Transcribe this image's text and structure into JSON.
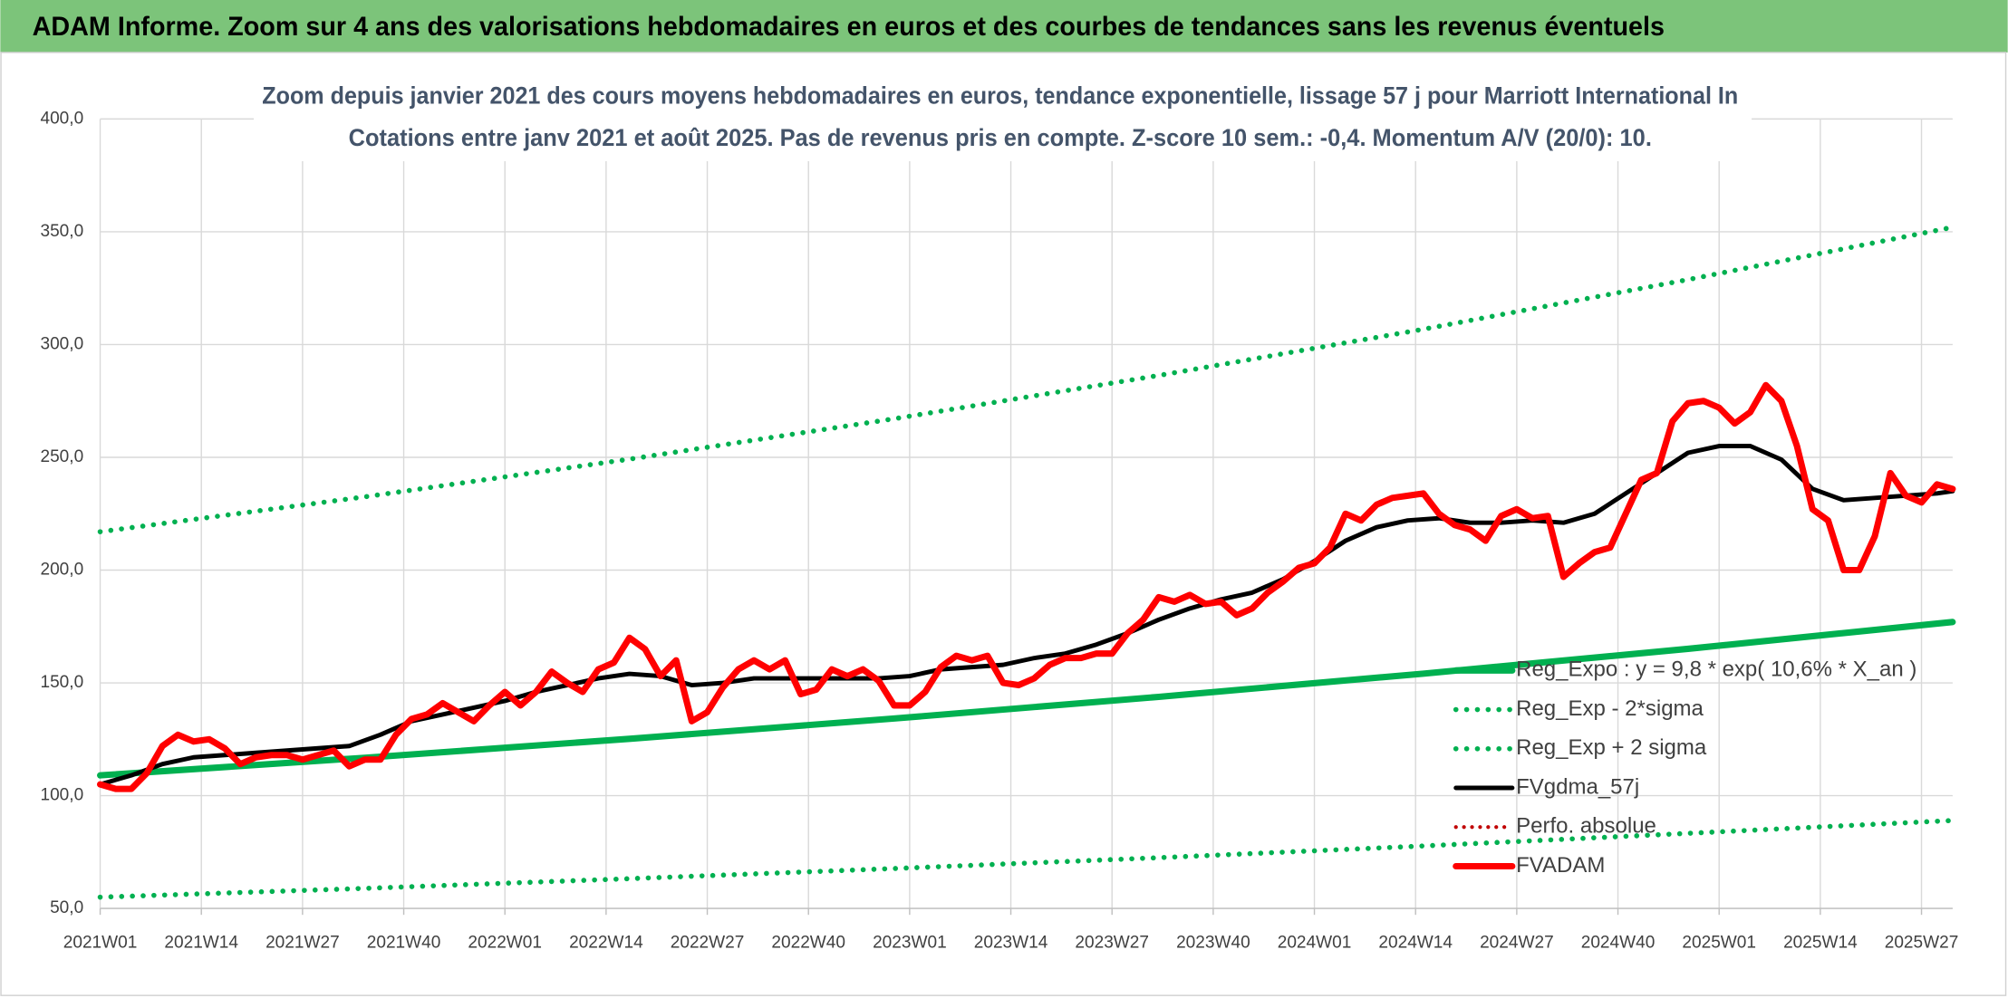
{
  "header": {
    "title": "ADAM Informe. Zoom sur 4 ans des valorisations hebdomadaires en euros et des courbes de tendances sans les revenus éventuels"
  },
  "chart_data": {
    "type": "line",
    "title": "Zoom depuis janvier 2021 des cours moyens hebdomadaires en euros, tendance exponentielle, lissage 57 j pour Marriott International In",
    "subtitle": "Cotations entre janv 2021 et août 2025. Pas de revenus pris en compte. Z-score 10 sem.: -0,4. Momentum A/V (20/0): 10.",
    "xlim": [
      0,
      238
    ],
    "xticks": [
      {
        "value": 0,
        "label": "2021W01"
      },
      {
        "value": 13,
        "label": "2021W14"
      },
      {
        "value": 26,
        "label": "2021W27"
      },
      {
        "value": 39,
        "label": "2021W40"
      },
      {
        "value": 52,
        "label": "2022W01"
      },
      {
        "value": 65,
        "label": "2022W14"
      },
      {
        "value": 78,
        "label": "2022W27"
      },
      {
        "value": 91,
        "label": "2022W40"
      },
      {
        "value": 104,
        "label": "2023W01"
      },
      {
        "value": 117,
        "label": "2023W14"
      },
      {
        "value": 130,
        "label": "2023W27"
      },
      {
        "value": 143,
        "label": "2023W40"
      },
      {
        "value": 156,
        "label": "2024W01"
      },
      {
        "value": 169,
        "label": "2024W14"
      },
      {
        "value": 182,
        "label": "2024W27"
      },
      {
        "value": 195,
        "label": "2024W40"
      },
      {
        "value": 208,
        "label": "2025W01"
      },
      {
        "value": 221,
        "label": "2025W14"
      },
      {
        "value": 234,
        "label": "2025W27"
      }
    ],
    "ylim": [
      50,
      400
    ],
    "yticks": [
      {
        "value": 50,
        "label": "50,0"
      },
      {
        "value": 100,
        "label": "100,0"
      },
      {
        "value": 150,
        "label": "150,0"
      },
      {
        "value": 200,
        "label": "200,0"
      },
      {
        "value": 250,
        "label": "250,0"
      },
      {
        "value": 300,
        "label": "300,0"
      },
      {
        "value": 350,
        "label": "350,0"
      },
      {
        "value": 400,
        "label": "400,0"
      }
    ],
    "grid": true,
    "legend": "lower-right",
    "series": [
      {
        "name": "Reg_Expo : y = 9,8 * exp( 10,6% *  X_an )",
        "color": "#00b050",
        "style": "solid",
        "width": 5,
        "x": [
          0,
          34,
          68,
          102,
          136,
          170,
          204,
          238
        ],
        "values": [
          109,
          116.8,
          125.2,
          134.2,
          143.8,
          154.1,
          165.1,
          177
        ]
      },
      {
        "name": "Reg_Exp - 2*sigma",
        "color": "#00b050",
        "style": "dotted",
        "width": 4,
        "x": [
          0,
          34,
          68,
          102,
          136,
          170,
          204,
          238
        ],
        "values": [
          55,
          58.9,
          63.2,
          67.7,
          72.5,
          77.7,
          83.3,
          89
        ]
      },
      {
        "name": "Reg_Exp + 2 sigma",
        "color": "#00b050",
        "style": "dotted",
        "width": 4,
        "x": [
          0,
          34,
          68,
          102,
          136,
          170,
          204,
          238
        ],
        "values": [
          217,
          232.5,
          249.2,
          267.1,
          286.3,
          306.8,
          328.8,
          352
        ]
      },
      {
        "name": "FVgdma_57j",
        "color": "#000000",
        "style": "solid",
        "width": 3.5,
        "x": [
          0,
          4,
          8,
          12,
          16,
          20,
          24,
          28,
          32,
          36,
          40,
          44,
          48,
          52,
          56,
          60,
          64,
          68,
          72,
          76,
          80,
          84,
          88,
          92,
          96,
          100,
          104,
          108,
          112,
          116,
          120,
          124,
          128,
          132,
          136,
          140,
          144,
          148,
          152,
          156,
          160,
          164,
          168,
          172,
          176,
          180,
          184,
          188,
          192,
          196,
          200,
          204,
          208,
          212,
          216,
          220,
          224,
          228,
          232,
          236,
          238
        ],
        "values": [
          105,
          109,
          114,
          117,
          118,
          119,
          120,
          121,
          122,
          127,
          133,
          136,
          139,
          142,
          146,
          149,
          152,
          154,
          153,
          149,
          150,
          152,
          152,
          152,
          152,
          152,
          153,
          156,
          157,
          158,
          161,
          163,
          167,
          172,
          178,
          183,
          187,
          190,
          196,
          204,
          213,
          219,
          222,
          223,
          221,
          221,
          222,
          221,
          225,
          234,
          243,
          252,
          255,
          255,
          249,
          236,
          231,
          232,
          233,
          234,
          235
        ]
      },
      {
        "name": "Perfo. absolue",
        "color": "#c00000",
        "style": "dotted",
        "width": 3
      },
      {
        "name": "FVADAM",
        "color": "#ff0000",
        "style": "solid",
        "width": 5,
        "x": [
          0,
          2,
          4,
          6,
          8,
          10,
          12,
          14,
          16,
          18,
          20,
          22,
          24,
          26,
          28,
          30,
          32,
          34,
          36,
          38,
          40,
          42,
          44,
          46,
          48,
          50,
          52,
          54,
          56,
          58,
          60,
          62,
          64,
          66,
          68,
          70,
          72,
          74,
          76,
          78,
          80,
          82,
          84,
          86,
          88,
          90,
          92,
          94,
          96,
          98,
          100,
          102,
          104,
          106,
          108,
          110,
          112,
          114,
          116,
          118,
          120,
          122,
          124,
          126,
          128,
          130,
          132,
          134,
          136,
          138,
          140,
          142,
          144,
          146,
          148,
          150,
          152,
          154,
          156,
          158,
          160,
          162,
          164,
          166,
          168,
          170,
          172,
          174,
          176,
          178,
          180,
          182,
          184,
          186,
          188,
          190,
          192,
          194,
          196,
          198,
          200,
          202,
          204,
          206,
          208,
          210,
          212,
          214,
          216,
          218,
          220,
          222,
          224,
          226,
          228,
          230,
          232,
          234,
          236,
          238
        ],
        "values": [
          105,
          103,
          103,
          110,
          122,
          127,
          124,
          125,
          121,
          114,
          117,
          118,
          118,
          116,
          118,
          120,
          113,
          116,
          116,
          127,
          134,
          136,
          141,
          137,
          133,
          140,
          146,
          140,
          146,
          155,
          150,
          146,
          156,
          159,
          170,
          165,
          153,
          160,
          133,
          137,
          148,
          156,
          160,
          156,
          160,
          145,
          147,
          156,
          153,
          156,
          151,
          140,
          140,
          146,
          157,
          162,
          160,
          162,
          150,
          149,
          152,
          158,
          161,
          161,
          163,
          163,
          172,
          178,
          188,
          186,
          189,
          185,
          186,
          180,
          183,
          190,
          195,
          201,
          203,
          210,
          225,
          222,
          229,
          232,
          233,
          234,
          225,
          220,
          218,
          213,
          224,
          227,
          223,
          224,
          197,
          203,
          208,
          210,
          225,
          240,
          243,
          266,
          274,
          275,
          272,
          265,
          270,
          282,
          275,
          255,
          227,
          222,
          200,
          200,
          215,
          243,
          233,
          230,
          238,
          236
        ]
      }
    ]
  }
}
